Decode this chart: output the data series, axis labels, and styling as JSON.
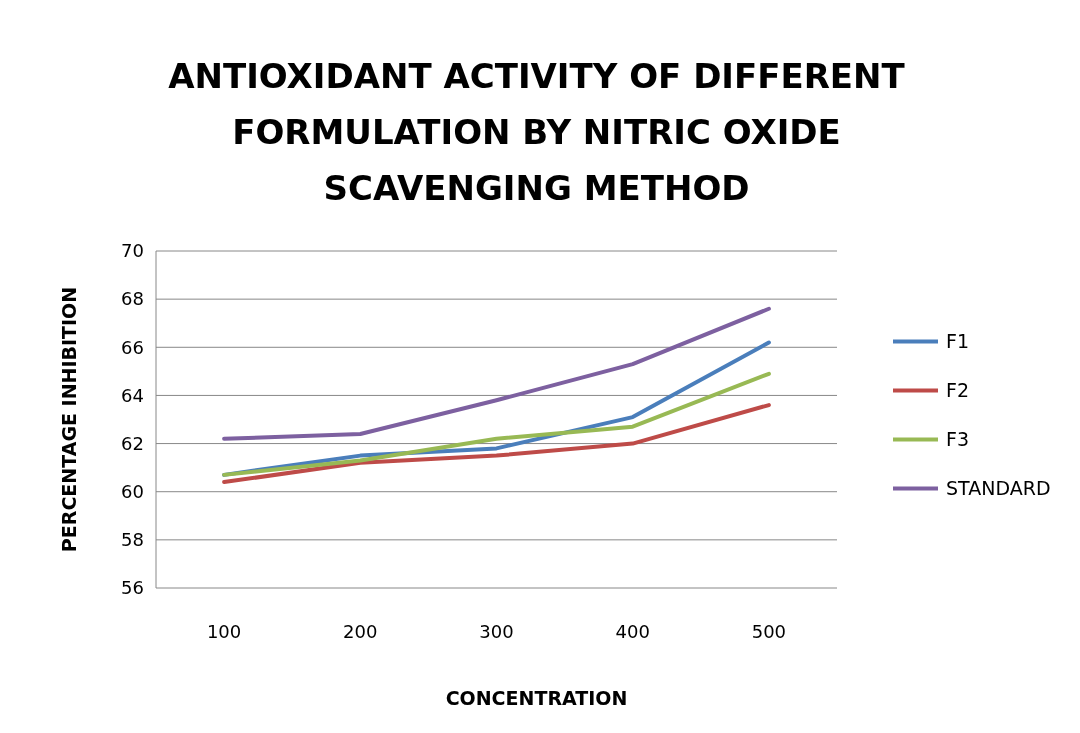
{
  "chart_data": {
    "type": "line",
    "title": "ANTIOXIDANT ACTIVITY OF DIFFERENT FORMULATION BY NITRIC OXIDE SCAVENGING METHOD",
    "xlabel": "CONCENTRATION",
    "ylabel": "PERCENTAGE INHIBITION",
    "categories": [
      "100",
      "200",
      "300",
      "400",
      "500"
    ],
    "series": [
      {
        "name": "F1",
        "color": "#4a7ebb",
        "values": [
          60.7,
          61.5,
          61.8,
          63.1,
          66.2
        ]
      },
      {
        "name": "F2",
        "color": "#be4b48",
        "values": [
          60.4,
          61.2,
          61.5,
          62.0,
          63.6
        ]
      },
      {
        "name": "F3",
        "color": "#98b954",
        "values": [
          60.7,
          61.3,
          62.2,
          62.7,
          64.9
        ]
      },
      {
        "name": "STANDARD",
        "color": "#7d60a0",
        "values": [
          62.2,
          62.4,
          63.8,
          65.3,
          67.6
        ]
      }
    ],
    "ylim": [
      56,
      70
    ],
    "yticks": [
      56,
      58,
      60,
      62,
      64,
      66,
      68,
      70
    ],
    "grid": "y",
    "legend": "right",
    "marker": "none",
    "line_style": "solid"
  }
}
